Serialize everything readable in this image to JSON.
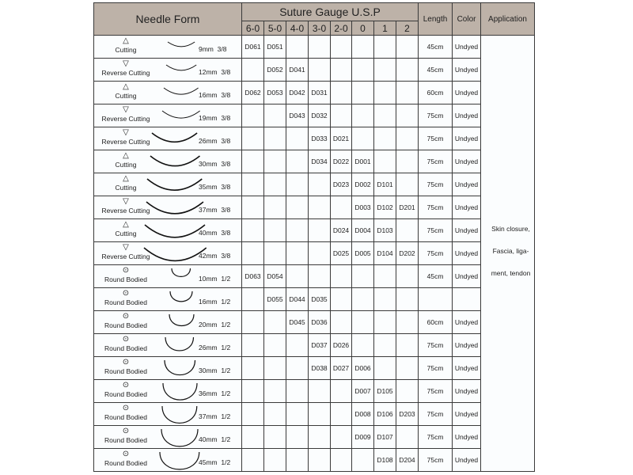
{
  "header": {
    "needle_form": "Needle Form",
    "gauge": "Suture Gauge U.S.P",
    "gauges": [
      "6-0",
      "5-0",
      "4-0",
      "3-0",
      "2-0",
      "0",
      "1",
      "2"
    ],
    "length": "Length",
    "color": "Color",
    "application": "Application"
  },
  "application": [
    "Skin closure,",
    "Fascia, liga-",
    "ment, tendon"
  ],
  "rows": [
    {
      "type": "Cutting",
      "icon": "cutting-triangle",
      "size": "9mm",
      "curve": "3/8",
      "codes": [
        "D061",
        "D051",
        "",
        "",
        "",
        "",
        "",
        ""
      ],
      "length": "45cm",
      "color": "Undyed"
    },
    {
      "type": "Reverse Cutting",
      "icon": "reverse-cutting-triangle",
      "size": "12mm",
      "curve": "3/8",
      "codes": [
        "",
        "D052",
        "D041",
        "",
        "",
        "",
        "",
        ""
      ],
      "length": "45cm",
      "color": "Undyed"
    },
    {
      "type": "Cutting",
      "icon": "cutting-triangle",
      "size": "16mm",
      "curve": "3/8",
      "codes": [
        "D062",
        "D053",
        "D042",
        "D031",
        "",
        "",
        "",
        ""
      ],
      "length": "60cm",
      "color": "Undyed"
    },
    {
      "type": "Reverse Cutting",
      "icon": "reverse-cutting-triangle",
      "size": "19mm",
      "curve": "3/8",
      "codes": [
        "",
        "",
        "D043",
        "D032",
        "",
        "",
        "",
        ""
      ],
      "length": "75cm",
      "color": "Undyed"
    },
    {
      "type": "Reverse Cutting",
      "icon": "reverse-cutting-triangle",
      "size": "26mm",
      "curve": "3/8",
      "codes": [
        "",
        "",
        "",
        "D033",
        "D021",
        "",
        "",
        ""
      ],
      "length": "75cm",
      "color": "Undyed"
    },
    {
      "type": "Cutting",
      "icon": "cutting-triangle",
      "size": "30mm",
      "curve": "3/8",
      "codes": [
        "",
        "",
        "",
        "D034",
        "D022",
        "D001",
        "",
        ""
      ],
      "length": "75cm",
      "color": "Undyed"
    },
    {
      "type": "Cutting",
      "icon": "cutting-triangle",
      "size": "35mm",
      "curve": "3/8",
      "codes": [
        "",
        "",
        "",
        "",
        "D023",
        "D002",
        "D101",
        ""
      ],
      "length": "75cm",
      "color": "Undyed"
    },
    {
      "type": "Reverse Cutting",
      "icon": "reverse-cutting-triangle",
      "size": "37mm",
      "curve": "3/8",
      "codes": [
        "",
        "",
        "",
        "",
        "",
        "D003",
        "D102",
        "D201"
      ],
      "length": "75cm",
      "color": "Undyed"
    },
    {
      "type": "Cutting",
      "icon": "cutting-triangle",
      "size": "40mm",
      "curve": "3/8",
      "codes": [
        "",
        "",
        "",
        "",
        "D024",
        "D004",
        "D103",
        ""
      ],
      "length": "75cm",
      "color": "Undyed"
    },
    {
      "type": "Reverse Cutting",
      "icon": "reverse-cutting-triangle",
      "size": "42mm",
      "curve": "3/8",
      "codes": [
        "",
        "",
        "",
        "",
        "D025",
        "D005",
        "D104",
        "D202"
      ],
      "length": "75cm",
      "color": "Undyed"
    },
    {
      "type": "Round Bodied",
      "icon": "round-bodied-circle",
      "size": "10mm",
      "curve": "1/2",
      "codes": [
        "D063",
        "D054",
        "",
        "",
        "",
        "",
        "",
        ""
      ],
      "length": "45cm",
      "color": "Undyed"
    },
    {
      "type": "Round Bodied",
      "icon": "round-bodied-circle",
      "size": "16mm",
      "curve": "1/2",
      "codes": [
        "",
        "D055",
        "D044",
        "D035",
        "",
        "",
        "",
        ""
      ],
      "length": "",
      "color": ""
    },
    {
      "type": "Round Bodied",
      "icon": "round-bodied-circle",
      "size": "20mm",
      "curve": "1/2",
      "codes": [
        "",
        "",
        "D045",
        "D036",
        "",
        "",
        "",
        ""
      ],
      "length": "60cm",
      "color": "Undyed"
    },
    {
      "type": "Round Bodied",
      "icon": "round-bodied-circle",
      "size": "26mm",
      "curve": "1/2",
      "codes": [
        "",
        "",
        "",
        "D037",
        "D026",
        "",
        "",
        ""
      ],
      "length": "75cm",
      "color": "Undyed"
    },
    {
      "type": "Round Bodied",
      "icon": "round-bodied-circle",
      "size": "30mm",
      "curve": "1/2",
      "codes": [
        "",
        "",
        "",
        "D038",
        "D027",
        "D006",
        "",
        ""
      ],
      "length": "75cm",
      "color": "Undyed"
    },
    {
      "type": "Round Bodied",
      "icon": "round-bodied-circle",
      "size": "36mm",
      "curve": "1/2",
      "codes": [
        "",
        "",
        "",
        "",
        "",
        "D007",
        "D105",
        ""
      ],
      "length": "75cm",
      "color": "Undyed"
    },
    {
      "type": "Round Bodied",
      "icon": "round-bodied-circle",
      "size": "37mm",
      "curve": "1/2",
      "codes": [
        "",
        "",
        "",
        "",
        "",
        "D008",
        "D106",
        "D203"
      ],
      "length": "75cm",
      "color": "Undyed"
    },
    {
      "type": "Round Bodied",
      "icon": "round-bodied-circle",
      "size": "40mm",
      "curve": "1/2",
      "codes": [
        "",
        "",
        "",
        "",
        "",
        "D009",
        "D107",
        ""
      ],
      "length": "75cm",
      "color": "Undyed"
    },
    {
      "type": "Round Bodied",
      "icon": "round-bodied-circle",
      "size": "45mm",
      "curve": "1/2",
      "codes": [
        "",
        "",
        "",
        "",
        "",
        "",
        "D108",
        "D204"
      ],
      "length": "75cm",
      "color": "Undyed"
    }
  ]
}
